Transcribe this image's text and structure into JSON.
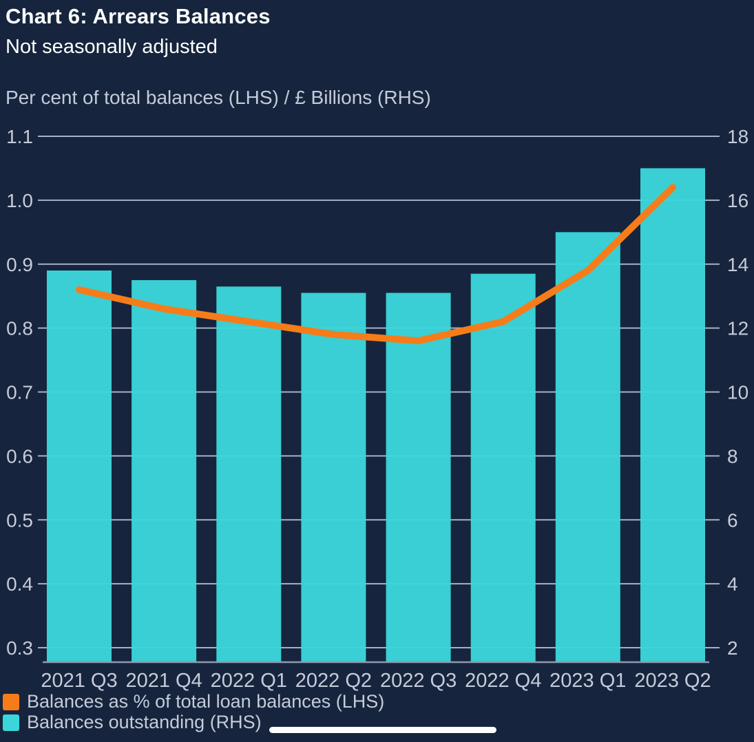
{
  "header": {
    "title": "Chart 6: Arrears Balances",
    "subtitle": "Not seasonally adjusted"
  },
  "chart_data": {
    "type": "bar",
    "subtype": "combo-bar-line-dual-axis",
    "axis_units_label": "Per cent of total balances (LHS) / £ Billions (RHS)",
    "categories": [
      "2021 Q3",
      "2021 Q4",
      "2022 Q1",
      "2022 Q2",
      "2022 Q3",
      "2022 Q4",
      "2023 Q1",
      "2023 Q2"
    ],
    "series": [
      {
        "name": "Balances as % of total loan balances (LHS)",
        "type": "line",
        "axis": "left",
        "color": "#f67c1a",
        "values": [
          0.86,
          0.83,
          0.81,
          0.79,
          0.78,
          0.81,
          0.89,
          1.02
        ]
      },
      {
        "name": "Balances outstanding (RHS)",
        "type": "bar",
        "axis": "right",
        "color": "#3bd6dc",
        "values": [
          13.8,
          13.5,
          13.3,
          13.1,
          13.1,
          13.7,
          15.0,
          17.0
        ]
      }
    ],
    "left_axis": {
      "ticks": [
        1.1,
        1.0,
        0.9,
        0.8,
        0.7,
        0.6,
        0.5,
        0.4,
        0.3
      ],
      "min": 0.3,
      "max": 1.1
    },
    "right_axis": {
      "ticks": [
        18,
        16,
        14,
        12,
        10,
        8,
        6,
        4,
        2
      ],
      "min": 2,
      "max": 18
    },
    "grid": true,
    "legend_position": "bottom-left"
  },
  "colors": {
    "background": "#16253d",
    "bar": "#3bd6dc",
    "line": "#f67c1a",
    "grid": "#a8b1c4",
    "axis_text": "#c5cbd9",
    "title_text": "#ffffff",
    "home_indicator": "#ffffff"
  }
}
